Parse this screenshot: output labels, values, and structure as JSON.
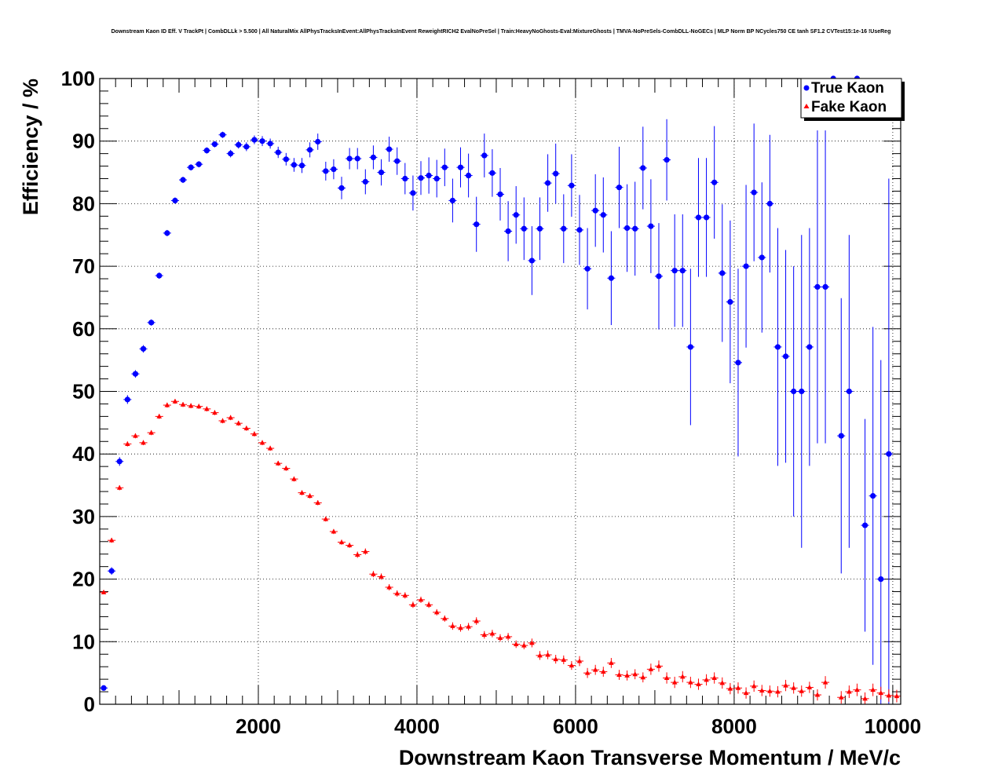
{
  "chart_data": {
    "type": "scatter",
    "title": "Downstream Kaon ID Eff. V TrackPt | CombDLLk > 5.500 | All NaturalMix AllPhysTracksInEvent:AllPhysTracksInEvent ReweightRICH2 EvalNoPreSel | Train:HeavyNoGhosts-Eval:MixtureGhosts | TMVA-NoPreSels-CombDLL-NoGECs | MLP Norm BP NCycles750 CE tanh SF1.2 CVTest15:1e-16 !UseReg",
    "xlabel": "Downstream Kaon Transverse Momentum / MeV/c",
    "ylabel": "Efficiency / %",
    "xlim": [
      0,
      10100
    ],
    "ylim": [
      0,
      100
    ],
    "xticks": [
      "2000",
      "4000",
      "6000",
      "8000",
      "10000"
    ],
    "yticks": [
      "0",
      "10",
      "20",
      "30",
      "40",
      "50",
      "60",
      "70",
      "80",
      "90",
      "100"
    ],
    "grid": true,
    "legend_position": "top-right",
    "bin_half_width": 50,
    "series": [
      {
        "name": "True Kaon",
        "color": "#0000ff",
        "marker": "circle",
        "x": [
          50,
          150,
          250,
          350,
          450,
          550,
          650,
          750,
          850,
          950,
          1050,
          1150,
          1250,
          1350,
          1450,
          1550,
          1650,
          1750,
          1850,
          1950,
          2050,
          2150,
          2250,
          2350,
          2450,
          2550,
          2650,
          2750,
          2850,
          2950,
          3050,
          3150,
          3250,
          3350,
          3450,
          3550,
          3650,
          3750,
          3850,
          3950,
          4050,
          4150,
          4250,
          4350,
          4450,
          4550,
          4650,
          4750,
          4850,
          4950,
          5050,
          5150,
          5250,
          5350,
          5450,
          5550,
          5650,
          5750,
          5850,
          5950,
          6050,
          6150,
          6250,
          6350,
          6450,
          6550,
          6650,
          6750,
          6850,
          6950,
          7050,
          7150,
          7250,
          7350,
          7450,
          7550,
          7650,
          7750,
          7850,
          7950,
          8050,
          8150,
          8250,
          8350,
          8450,
          8550,
          8650,
          8750,
          8850,
          8950,
          9050,
          9150,
          9250,
          9350,
          9450,
          9550,
          9650,
          9750,
          9850,
          9950,
          10050
        ],
        "y": [
          2.6,
          21.3,
          38.8,
          48.7,
          52.8,
          56.8,
          61.0,
          68.5,
          75.3,
          80.5,
          83.8,
          85.8,
          86.3,
          88.5,
          89.5,
          91.0,
          88.0,
          89.4,
          89.1,
          90.2,
          90.0,
          89.6,
          88.2,
          87.1,
          86.2,
          86.1,
          88.6,
          89.9,
          85.2,
          85.5,
          82.5,
          87.2,
          87.2,
          83.5,
          87.4,
          85.0,
          88.7,
          86.8,
          84.0,
          81.7,
          84.1,
          84.5,
          84.0,
          85.8,
          80.5,
          85.8,
          84.5,
          76.7,
          87.7,
          84.9,
          81.5,
          75.6,
          78.2,
          76.0,
          70.9,
          76.0,
          83.3,
          84.8,
          76.0,
          82.9,
          75.8,
          69.6,
          78.9,
          78.2,
          68.1,
          82.6,
          76.1,
          76.0,
          85.7,
          76.4,
          68.4,
          87.0,
          69.3,
          69.3,
          57.1,
          77.8,
          77.8,
          83.4,
          68.9,
          64.3,
          54.6,
          70.0,
          81.8,
          71.4,
          80.0,
          57.1,
          55.6,
          50.0,
          50.0,
          57.1,
          66.7,
          66.7,
          100.0,
          42.9,
          50.0,
          100.0,
          28.6,
          33.3,
          20.0,
          40.0,
          0
        ],
        "err": [
          0.4,
          0.6,
          0.7,
          0.7,
          0.6,
          0.6,
          0.5,
          0.5,
          0.5,
          0.5,
          0.5,
          0.5,
          0.5,
          0.5,
          0.5,
          0.5,
          0.6,
          0.6,
          0.7,
          0.7,
          0.8,
          0.8,
          0.9,
          1.0,
          1.1,
          1.2,
          1.2,
          1.3,
          1.5,
          1.6,
          1.8,
          1.7,
          1.7,
          2.0,
          1.9,
          2.1,
          2.0,
          2.2,
          2.5,
          2.8,
          2.7,
          2.9,
          3.0,
          3.0,
          3.5,
          3.2,
          3.5,
          4.4,
          3.5,
          3.8,
          4.2,
          4.8,
          4.6,
          5.0,
          5.5,
          5.0,
          4.6,
          4.8,
          5.5,
          5.0,
          5.6,
          6.5,
          5.8,
          6.0,
          7.5,
          6.5,
          7.0,
          7.5,
          6.6,
          7.5,
          8.5,
          6.5,
          9.0,
          9.0,
          12.5,
          9.5,
          9.5,
          9.0,
          11.0,
          13.0,
          15.0,
          13.0,
          11.0,
          12.0,
          11.0,
          19.0,
          17.0,
          20.0,
          25.0,
          19.0,
          25.0,
          25.0,
          0,
          22.0,
          25.0,
          0,
          17.0,
          27.0,
          35.0,
          44.0,
          0
        ]
      },
      {
        "name": "Fake Kaon",
        "color": "#ff0000",
        "marker": "triangle",
        "x": [
          50,
          150,
          250,
          350,
          450,
          550,
          650,
          750,
          850,
          950,
          1050,
          1150,
          1250,
          1350,
          1450,
          1550,
          1650,
          1750,
          1850,
          1950,
          2050,
          2150,
          2250,
          2350,
          2450,
          2550,
          2650,
          2750,
          2850,
          2950,
          3050,
          3150,
          3250,
          3350,
          3450,
          3550,
          3650,
          3750,
          3850,
          3950,
          4050,
          4150,
          4250,
          4350,
          4450,
          4550,
          4650,
          4750,
          4850,
          4950,
          5050,
          5150,
          5250,
          5350,
          5450,
          5550,
          5650,
          5750,
          5850,
          5950,
          6050,
          6150,
          6250,
          6350,
          6450,
          6550,
          6650,
          6750,
          6850,
          6950,
          7050,
          7150,
          7250,
          7350,
          7450,
          7550,
          7650,
          7750,
          7850,
          7950,
          8050,
          8150,
          8250,
          8350,
          8450,
          8550,
          8650,
          8750,
          8850,
          8950,
          9050,
          9150,
          9250,
          9350,
          9450,
          9550,
          9650,
          9750,
          9850,
          9950,
          10050
        ],
        "y": [
          17.9,
          26.2,
          34.6,
          41.6,
          42.9,
          41.8,
          43.4,
          46.0,
          47.8,
          48.4,
          47.9,
          47.7,
          47.6,
          47.2,
          46.6,
          45.3,
          45.8,
          44.9,
          44.1,
          43.2,
          41.8,
          40.9,
          38.5,
          37.7,
          36.0,
          33.8,
          33.3,
          32.2,
          29.6,
          27.6,
          25.9,
          25.4,
          23.9,
          24.4,
          20.8,
          20.4,
          18.7,
          17.7,
          17.4,
          15.9,
          16.7,
          15.9,
          14.7,
          13.7,
          12.5,
          12.2,
          12.4,
          13.3,
          11.1,
          11.3,
          10.6,
          10.8,
          9.6,
          9.4,
          9.8,
          7.8,
          7.9,
          7.2,
          7.1,
          6.2,
          6.9,
          5.0,
          5.5,
          5.2,
          6.6,
          4.7,
          4.6,
          4.8,
          4.3,
          5.6,
          6.1,
          4.2,
          3.5,
          4.4,
          3.5,
          3.2,
          3.9,
          4.2,
          3.4,
          2.5,
          2.6,
          1.8,
          2.9,
          2.2,
          2.1,
          2.0,
          3.0,
          2.6,
          2.1,
          2.7,
          1.5,
          3.5,
          0,
          1.1,
          2.0,
          2.3,
          0.9,
          2.3,
          1.8,
          1.4,
          1.3
        ],
        "err": [
          0.3,
          0.4,
          0.4,
          0.4,
          0.4,
          0.4,
          0.4,
          0.4,
          0.4,
          0.4,
          0.4,
          0.4,
          0.4,
          0.4,
          0.4,
          0.4,
          0.4,
          0.4,
          0.4,
          0.4,
          0.4,
          0.4,
          0.4,
          0.4,
          0.4,
          0.4,
          0.4,
          0.4,
          0.4,
          0.4,
          0.4,
          0.4,
          0.5,
          0.5,
          0.5,
          0.5,
          0.5,
          0.5,
          0.5,
          0.5,
          0.5,
          0.5,
          0.5,
          0.5,
          0.6,
          0.6,
          0.6,
          0.6,
          0.6,
          0.6,
          0.6,
          0.6,
          0.6,
          0.6,
          0.7,
          0.7,
          0.7,
          0.7,
          0.7,
          0.7,
          0.8,
          0.8,
          0.8,
          0.8,
          0.8,
          0.8,
          0.8,
          0.8,
          0.8,
          0.9,
          0.9,
          0.9,
          0.9,
          0.9,
          0.9,
          0.9,
          0.9,
          0.9,
          0.9,
          0.9,
          0.9,
          0.9,
          0.9,
          0.9,
          0.9,
          0.9,
          0.9,
          0.9,
          0.9,
          0.9,
          0.9,
          1.0,
          0,
          1.0,
          1.0,
          1.0,
          1.0,
          1.0,
          1.0,
          1.0,
          1.0
        ]
      }
    ]
  }
}
